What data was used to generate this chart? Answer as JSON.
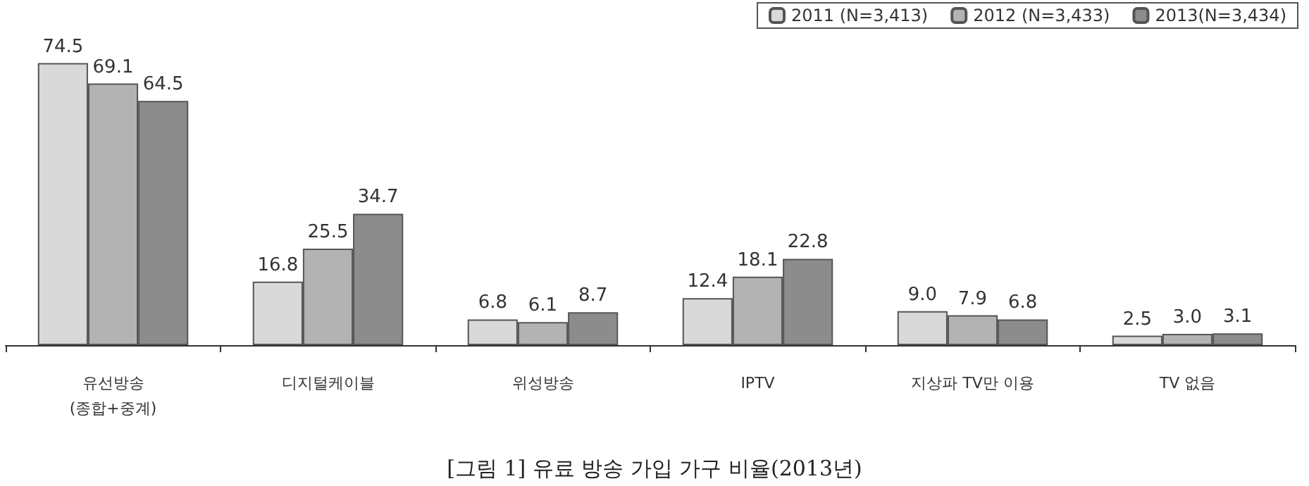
{
  "chart_data": {
    "type": "bar",
    "title": "[그림 1] 유료 방송 가입 가구 비율(2013년)",
    "categories": [
      "유선방송\n(종합+중계)",
      "디지털케이블",
      "위성방송",
      "IPTV",
      "지상파 TV만 이용",
      "TV 없음"
    ],
    "series": [
      {
        "name": "2011 (N=3,413)",
        "color": "#d9d9d9",
        "values": [
          74.5,
          16.8,
          6.8,
          12.4,
          9.0,
          2.5
        ],
        "value_labels": [
          "74.5",
          "16.8",
          "6.8",
          "12.4",
          "9.0",
          "2.5"
        ]
      },
      {
        "name": "2012 (N=3,433)",
        "color": "#b3b3b3",
        "values": [
          69.1,
          25.5,
          6.1,
          18.1,
          7.9,
          3.0
        ],
        "value_labels": [
          "69.1",
          "25.5",
          "6.1",
          "18.1",
          "7.9",
          "3.0"
        ]
      },
      {
        "name": "2013(N=3,434)",
        "color": "#8c8c8c",
        "values": [
          64.5,
          34.7,
          8.7,
          22.8,
          6.8,
          3.1
        ],
        "value_labels": [
          "64.5",
          "34.7",
          "8.7",
          "22.8",
          "6.8",
          "3.1"
        ]
      }
    ],
    "legend": "top right"
  }
}
